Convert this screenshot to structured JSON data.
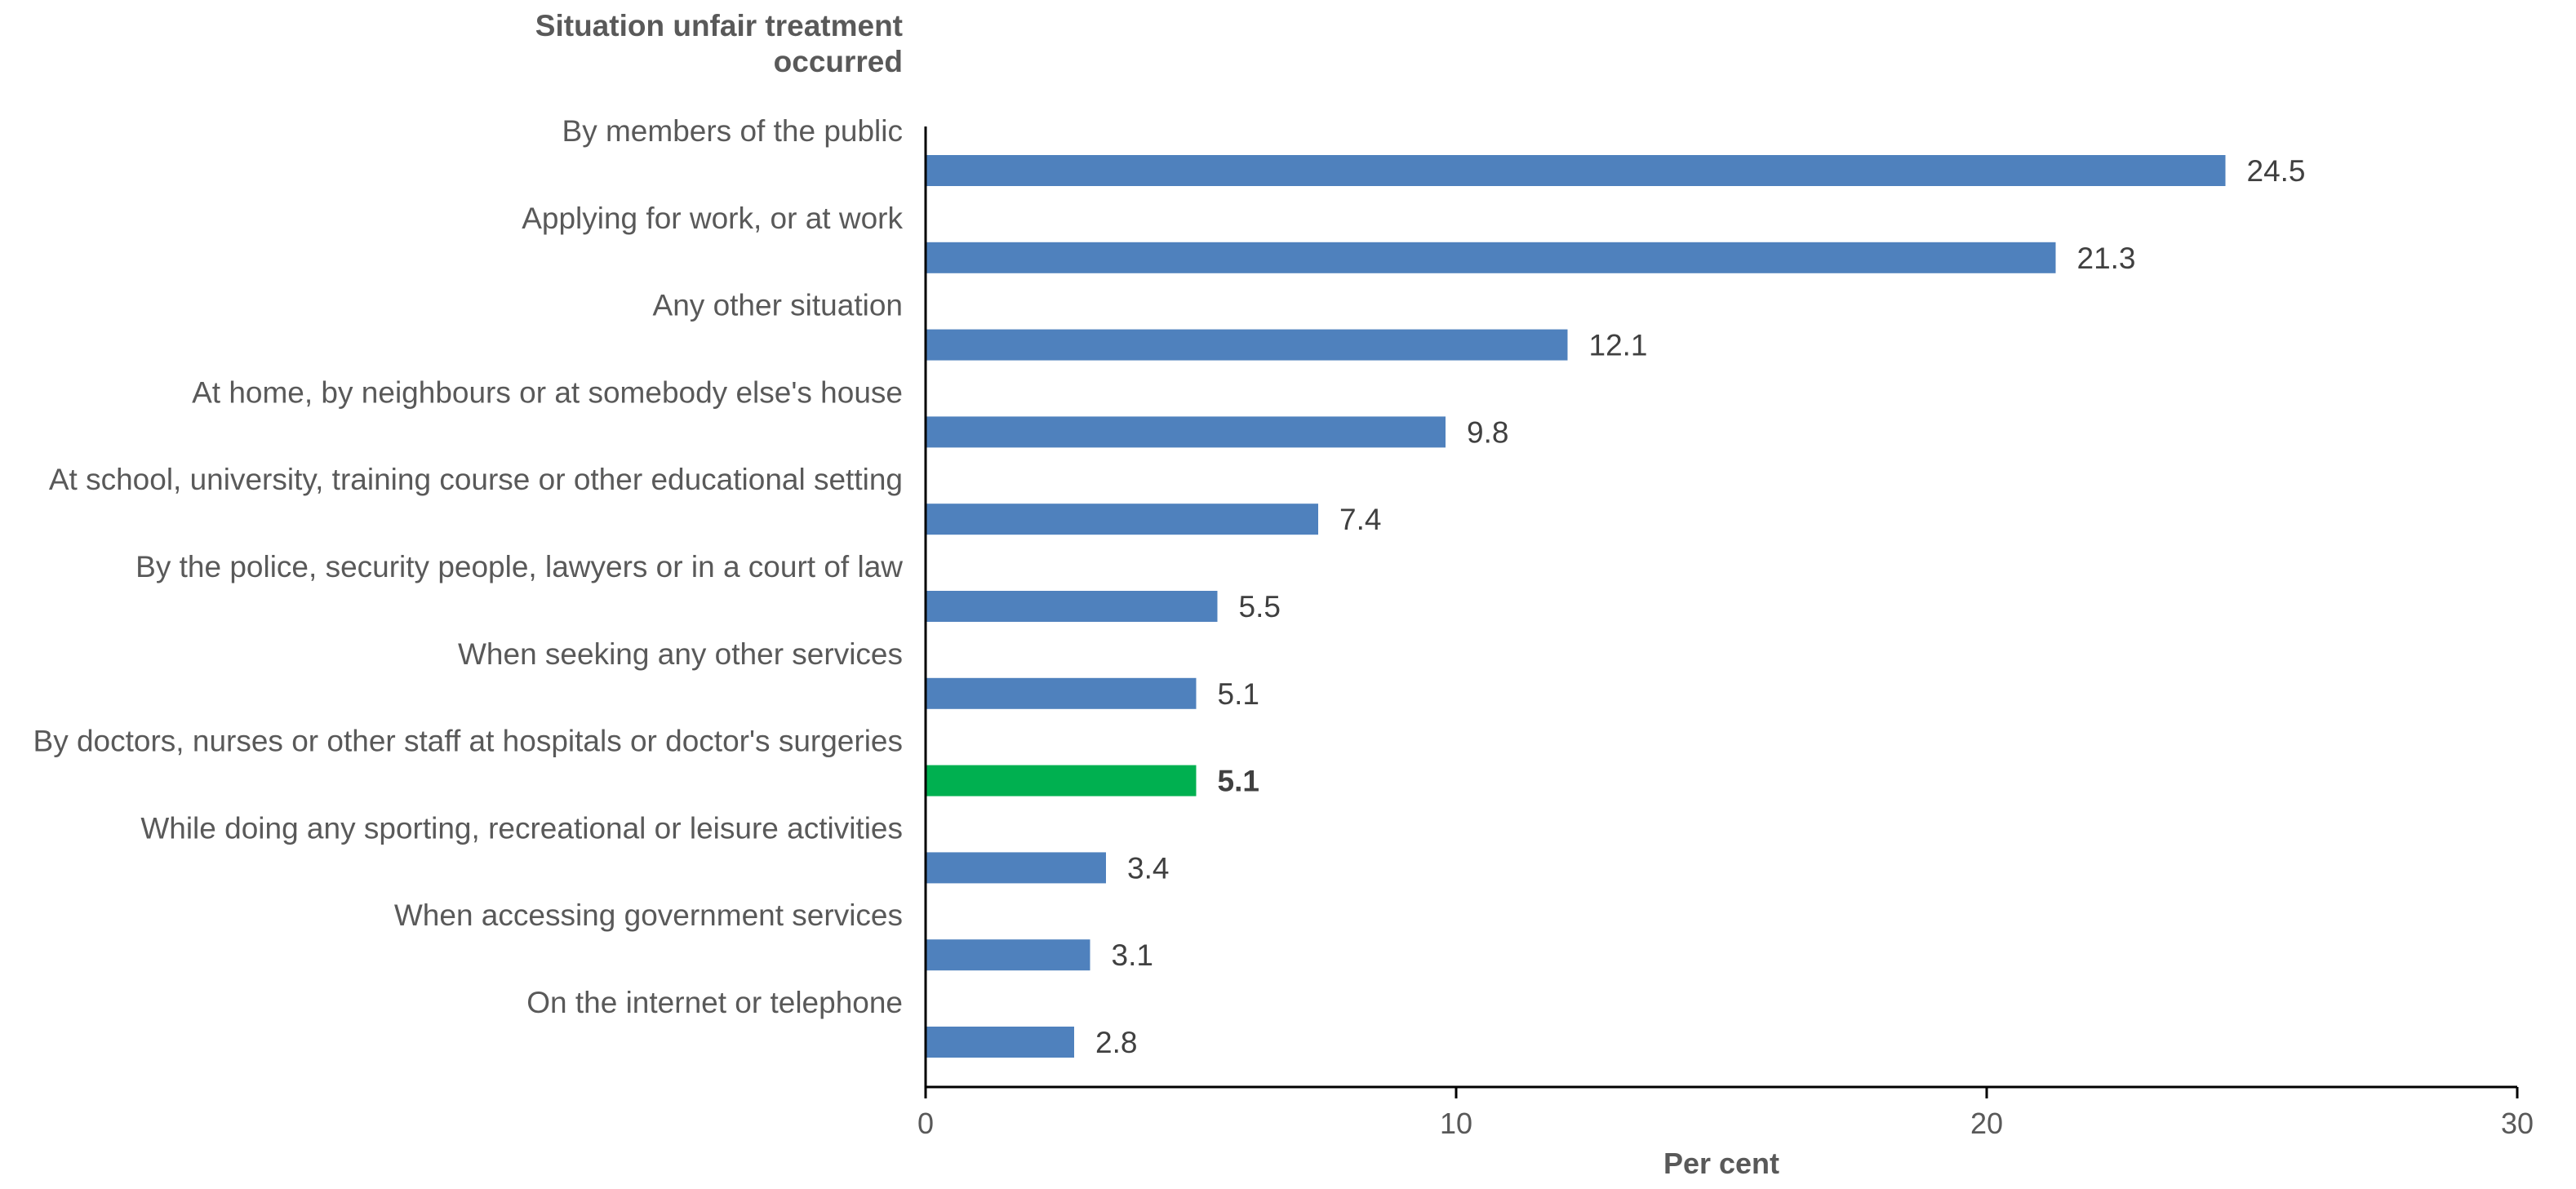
{
  "chart_data": {
    "type": "bar",
    "orientation": "horizontal",
    "category_axis_title": "Situation unfair treatment occurred",
    "category_axis_title_lines": [
      "Situation unfair treatment",
      "occurred"
    ],
    "xlabel": "Per cent",
    "xlim": [
      0,
      30
    ],
    "xticks": [
      0,
      10,
      20,
      30
    ],
    "grid": false,
    "categories": [
      "By members of the public",
      "Applying for work, or at work",
      "Any other situation",
      "At home, by neighbours or at somebody else's house",
      "At school, university, training course or other educational setting",
      "By the police, security people, lawyers or in a court of law",
      "When seeking any other services",
      "By doctors, nurses or other staff at hospitals or doctor's surgeries",
      "While doing any sporting, recreational or leisure activities",
      "When accessing government services",
      "On the internet or telephone"
    ],
    "values": [
      24.5,
      21.3,
      12.1,
      9.8,
      7.4,
      5.5,
      5.1,
      5.1,
      3.4,
      3.1,
      2.8
    ],
    "value_labels": [
      "24.5",
      "21.3",
      "12.1",
      "9.8",
      "7.4",
      "5.5",
      "5.1",
      "5.1",
      "3.4",
      "3.1",
      "2.8"
    ],
    "highlighted_category_index": 7,
    "colors": {
      "default_bar": "#4F81BD",
      "highlight_bar": "#00B050"
    }
  }
}
